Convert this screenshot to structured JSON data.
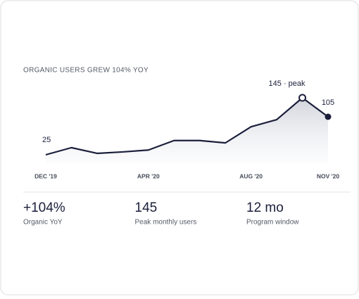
{
  "chart_data": {
    "type": "line",
    "title": "ORGANIC USERS GREW 104% YOY",
    "categories": [
      "DEC '19",
      null,
      null,
      null,
      "APR '20",
      null,
      null,
      null,
      "AUG '20",
      null,
      null,
      "NOV '20"
    ],
    "values": [
      25,
      40,
      28,
      31,
      35,
      55,
      55,
      50,
      84,
      99,
      145,
      105
    ],
    "value_labels": [
      "25",
      null,
      null,
      null,
      null,
      null,
      null,
      null,
      null,
      null,
      "145 · peak",
      "105"
    ],
    "color": "#1b1f3b"
  },
  "stats": [
    {
      "value": "+104%",
      "label": "Organic YoY"
    },
    {
      "value": "145",
      "label": "Peak monthly users"
    },
    {
      "value": "12 mo",
      "label": "Program window"
    }
  ]
}
